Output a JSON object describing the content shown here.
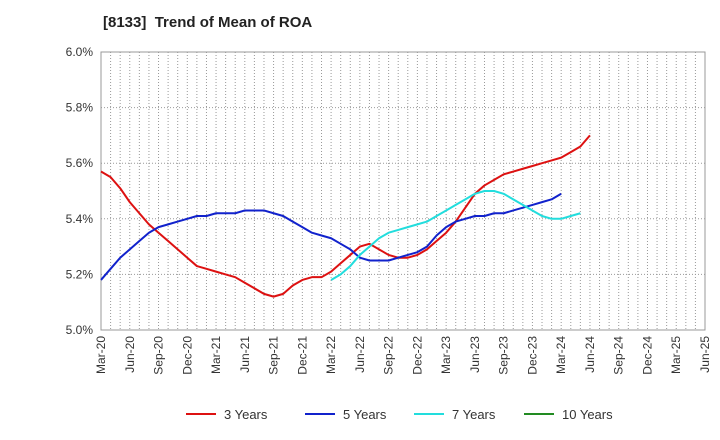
{
  "chart_data": {
    "type": "line",
    "title": "[8133]  Trend of Mean of ROA",
    "xlabel": "",
    "ylabel": "",
    "y_unit": "%",
    "ylim": [
      5.0,
      6.0
    ],
    "yticks": [
      "5.0%",
      "5.2%",
      "5.4%",
      "5.6%",
      "5.8%",
      "6.0%"
    ],
    "ytick_values": [
      5.0,
      5.2,
      5.4,
      5.6,
      5.8,
      6.0
    ],
    "x_start": "2020-03",
    "x_end": "2025-06",
    "xticks": [
      "Mar-20",
      "Jun-20",
      "Sep-20",
      "Dec-20",
      "Mar-21",
      "Jun-21",
      "Sep-21",
      "Dec-21",
      "Mar-22",
      "Jun-22",
      "Sep-22",
      "Dec-22",
      "Mar-23",
      "Jun-23",
      "Sep-23",
      "Dec-23",
      "Mar-24",
      "Jun-24",
      "Sep-24",
      "Dec-24",
      "Mar-25",
      "Jun-25"
    ],
    "grid": true,
    "legend_position": "bottom",
    "series": [
      {
        "name": "3 Years",
        "color": "#dd1111",
        "start": "2020-03",
        "values": [
          5.57,
          5.55,
          5.51,
          5.46,
          5.42,
          5.38,
          5.35,
          5.32,
          5.29,
          5.26,
          5.23,
          5.22,
          5.21,
          5.2,
          5.19,
          5.17,
          5.15,
          5.13,
          5.12,
          5.13,
          5.16,
          5.18,
          5.19,
          5.19,
          5.21,
          5.24,
          5.27,
          5.3,
          5.31,
          5.29,
          5.27,
          5.26,
          5.26,
          5.27,
          5.29,
          5.32,
          5.35,
          5.39,
          5.44,
          5.49,
          5.52,
          5.54,
          5.56,
          5.57,
          5.58,
          5.59,
          5.6,
          5.61,
          5.62,
          5.64,
          5.66,
          5.7
        ]
      },
      {
        "name": "5 Years",
        "color": "#1122cc",
        "start": "2020-03",
        "values": [
          5.18,
          5.22,
          5.26,
          5.29,
          5.32,
          5.35,
          5.37,
          5.38,
          5.39,
          5.4,
          5.41,
          5.41,
          5.42,
          5.42,
          5.42,
          5.43,
          5.43,
          5.43,
          5.42,
          5.41,
          5.39,
          5.37,
          5.35,
          5.34,
          5.33,
          5.31,
          5.29,
          5.26,
          5.25,
          5.25,
          5.25,
          5.26,
          5.27,
          5.28,
          5.3,
          5.34,
          5.37,
          5.39,
          5.4,
          5.41,
          5.41,
          5.42,
          5.42,
          5.43,
          5.44,
          5.45,
          5.46,
          5.47,
          5.49
        ]
      },
      {
        "name": "7 Years",
        "color": "#22dddd",
        "start": "2022-03",
        "values": [
          5.18,
          5.2,
          5.23,
          5.27,
          5.3,
          5.33,
          5.35,
          5.36,
          5.37,
          5.38,
          5.39,
          5.41,
          5.43,
          5.45,
          5.47,
          5.49,
          5.5,
          5.5,
          5.49,
          5.47,
          5.45,
          5.43,
          5.41,
          5.4,
          5.4,
          5.41,
          5.42
        ]
      },
      {
        "name": "10 Years",
        "color": "#228b22",
        "start": "2025-03",
        "values": []
      }
    ]
  }
}
